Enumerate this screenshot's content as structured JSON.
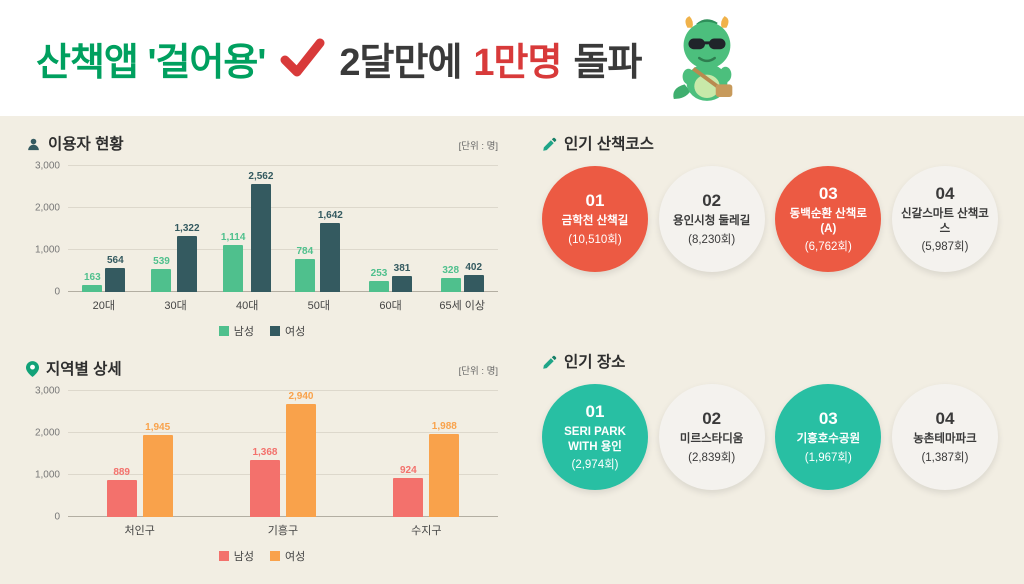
{
  "header": {
    "title_app": "산책앱 '걸어용'",
    "title_mid": "2달만에",
    "title_highlight": "1만명",
    "title_end": "돌파",
    "check_color": "#d83a3a",
    "mascot": "dragon-mascot"
  },
  "chart_data": [
    {
      "type": "bar",
      "title": "이용자 현황",
      "unit": "[단위 : 명]",
      "categories": [
        "20대",
        "30대",
        "40대",
        "50대",
        "60대",
        "65세 이상"
      ],
      "series": [
        {
          "name": "남성",
          "color": "#4fc08d",
          "values": [
            163,
            539,
            1114,
            784,
            253,
            328
          ]
        },
        {
          "name": "여성",
          "color": "#345a60",
          "values": [
            564,
            1322,
            2562,
            1642,
            381,
            402
          ]
        }
      ],
      "ylim": [
        0,
        3000
      ],
      "yticks": [
        0,
        1000,
        2000,
        3000
      ],
      "grid": true,
      "legend_position": "bottom"
    },
    {
      "type": "bar",
      "title": "지역별 상세",
      "unit": "[단위 : 명]",
      "categories": [
        "처인구",
        "기흥구",
        "수지구"
      ],
      "series": [
        {
          "name": "남성",
          "color": "#f3716c",
          "values": [
            889,
            1368,
            924
          ]
        },
        {
          "name": "여성",
          "color": "#f9a24b",
          "values": [
            1945,
            2940,
            1988
          ]
        }
      ],
      "ylim": [
        0,
        3000
      ],
      "yticks": [
        0,
        1000,
        2000,
        3000
      ],
      "grid": true,
      "legend_position": "bottom"
    }
  ],
  "rankings": [
    {
      "title": "인기 산책코스",
      "accent_color": "#ec5a43",
      "items": [
        {
          "rank": "01",
          "name": "금학천 산책길",
          "count": "(10,510회)",
          "highlighted": true
        },
        {
          "rank": "02",
          "name": "용인시청 둘레길",
          "count": "(8,230회)",
          "highlighted": false
        },
        {
          "rank": "03",
          "name": "동백순환 산책로(A)",
          "count": "(6,762회)",
          "highlighted": true
        },
        {
          "rank": "04",
          "name": "신갈스마트 산책코스",
          "count": "(5,987회)",
          "highlighted": false
        }
      ]
    },
    {
      "title": "인기 장소",
      "accent_color": "#28bfa3",
      "items": [
        {
          "rank": "01",
          "name": "SERI PARK WITH 용인",
          "count": "(2,974회)",
          "highlighted": true
        },
        {
          "rank": "02",
          "name": "미르스타디움",
          "count": "(2,839회)",
          "highlighted": false
        },
        {
          "rank": "03",
          "name": "기흥호수공원",
          "count": "(1,967회)",
          "highlighted": true
        },
        {
          "rank": "04",
          "name": "농촌테마파크",
          "count": "(1,387회)",
          "highlighted": false
        }
      ]
    }
  ]
}
